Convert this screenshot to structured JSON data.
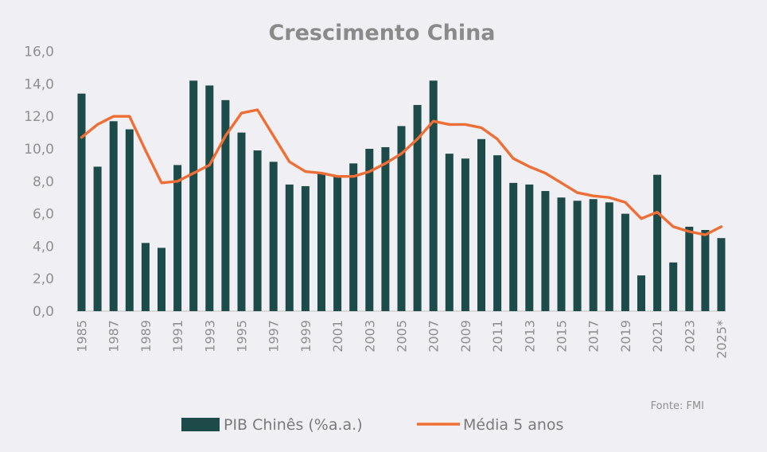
{
  "chart_data": {
    "type": "bar",
    "title": "Crescimento China",
    "source": "Fonte: FMI",
    "ylim": [
      0,
      16
    ],
    "y_ticks": [
      "0,0",
      "2,0",
      "4,0",
      "6,0",
      "8,0",
      "10,0",
      "12,0",
      "14,0",
      "16,0"
    ],
    "categories": [
      "1985",
      "1986",
      "1987",
      "1988",
      "1989",
      "1990",
      "1991",
      "1992",
      "1993",
      "1994",
      "1995",
      "1996",
      "1997",
      "1998",
      "1999",
      "2000",
      "2001",
      "2002",
      "2003",
      "2004",
      "2005",
      "2006",
      "2007",
      "2008",
      "2009",
      "2010",
      "2011",
      "2012",
      "2013",
      "2014",
      "2015",
      "2016",
      "2017",
      "2018",
      "2019",
      "2020",
      "2021",
      "2022",
      "2023",
      "2024",
      "2025*"
    ],
    "x_tick_labels": [
      "1985",
      "1987",
      "1989",
      "1991",
      "1993",
      "1995",
      "1997",
      "1999",
      "2001",
      "2003",
      "2005",
      "2007",
      "2009",
      "2011",
      "2013",
      "2015",
      "2017",
      "2019",
      "2021",
      "2023",
      "2025*"
    ],
    "series": [
      {
        "name": "PIB Chinês (%a.a.)",
        "type": "bar",
        "color": "#1d4b4a",
        "values": [
          13.4,
          8.9,
          11.7,
          11.2,
          4.2,
          3.9,
          9.0,
          14.2,
          13.9,
          13.0,
          11.0,
          9.9,
          9.2,
          7.8,
          7.7,
          8.5,
          8.3,
          9.1,
          10.0,
          10.1,
          11.4,
          12.7,
          14.2,
          9.7,
          9.4,
          10.6,
          9.6,
          7.9,
          7.8,
          7.4,
          7.0,
          6.8,
          6.9,
          6.7,
          6.0,
          2.2,
          8.4,
          3.0,
          5.2,
          5.0,
          4.5
        ]
      },
      {
        "name": "Média 5 anos",
        "type": "line",
        "color": "#ef6e35",
        "values": [
          10.7,
          11.5,
          12.0,
          12.0,
          9.9,
          7.9,
          8.0,
          8.5,
          9.0,
          10.8,
          12.2,
          12.4,
          10.8,
          9.2,
          8.6,
          8.5,
          8.3,
          8.3,
          8.6,
          9.1,
          9.7,
          10.6,
          11.7,
          11.5,
          11.5,
          11.3,
          10.6,
          9.4,
          8.9,
          8.5,
          7.9,
          7.3,
          7.1,
          7.0,
          6.7,
          5.7,
          6.1,
          5.2,
          4.9,
          4.7,
          5.2
        ]
      }
    ]
  }
}
